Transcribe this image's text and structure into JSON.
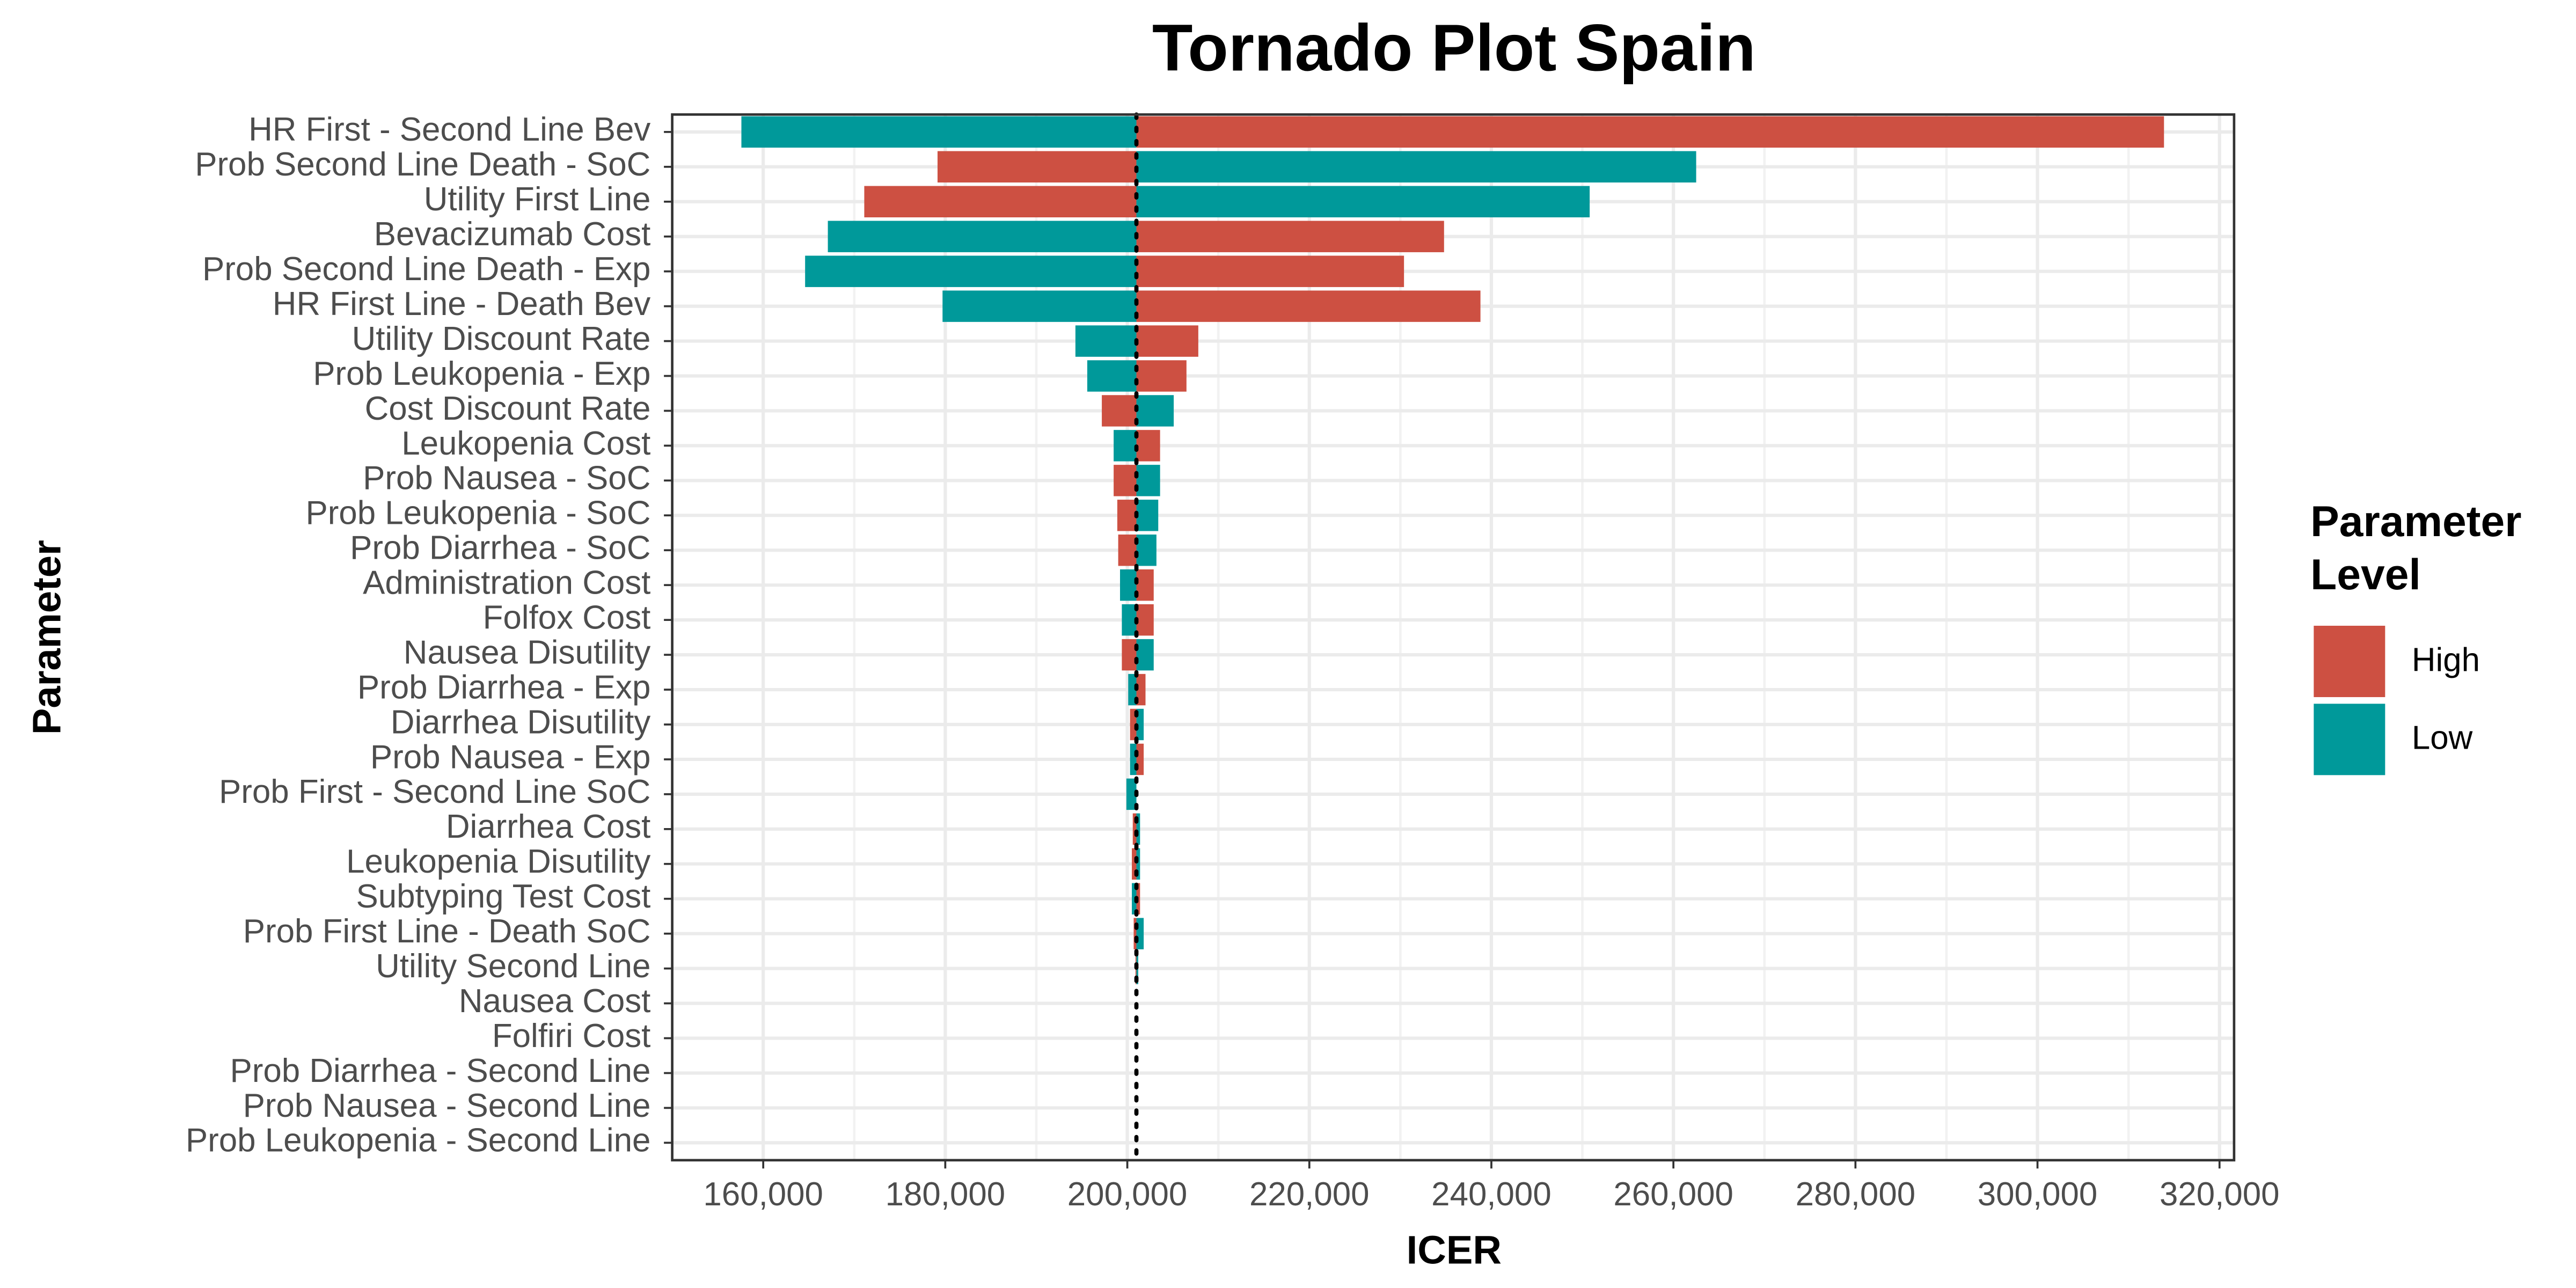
{
  "chart_data": {
    "type": "tornado",
    "title": "Tornado Plot Spain",
    "x_label": "ICER",
    "y_label": "Parameter",
    "legend_title": "Parameter Level",
    "categories": [
      "HR First - Second Line Bev",
      "Prob Second Line Death - SoC",
      "Utility First Line",
      "Bevacizumab Cost",
      "Prob Second Line Death - Exp",
      "HR First Line - Death Bev",
      "Utility Discount Rate",
      "Prob Leukopenia - Exp",
      "Cost Discount Rate",
      "Leukopenia Cost",
      "Prob Nausea - SoC",
      "Prob Leukopenia - SoC",
      "Prob Diarrhea - SoC",
      "Administration Cost",
      "Folfox Cost",
      "Nausea Disutility",
      "Prob Diarrhea - Exp",
      "Diarrhea Disutility",
      "Prob Nausea - Exp",
      "Prob First - Second Line SoC",
      "Diarrhea Cost",
      "Leukopenia Disutility",
      "Subtyping Test Cost",
      "Prob First Line - Death SoC",
      "Utility Second Line",
      "Nausea Cost",
      "Folfiri Cost",
      "Prob Diarrhea - Second Line",
      "Prob Nausea - Second Line",
      "Prob Leukopenia - Second Line"
    ],
    "base": 201000,
    "series": [
      {
        "name": "High",
        "color": "#cd5042",
        "values": [
          313900,
          179150,
          171100,
          234800,
          230400,
          238800,
          207800,
          206500,
          197200,
          203600,
          198500,
          198900,
          199000,
          202900,
          202900,
          199400,
          202000,
          200300,
          201800,
          201000,
          200600,
          200500,
          201400,
          200700,
          200900,
          201000,
          201000,
          201000,
          201000,
          201000
        ]
      },
      {
        "name": "Low",
        "color": "#00999a",
        "values": [
          157600,
          262500,
          250800,
          167100,
          164600,
          179700,
          194300,
          195600,
          205100,
          198500,
          203600,
          203400,
          203200,
          199200,
          199400,
          202900,
          200100,
          201800,
          200300,
          199900,
          201400,
          201400,
          200500,
          201800,
          201200,
          201000,
          201000,
          201000,
          201000,
          201000
        ]
      }
    ],
    "xlim": [
      150000,
      321600
    ],
    "xticks": [
      {
        "value": 160000,
        "label": "160,000"
      },
      {
        "value": 180000,
        "label": "180,000"
      },
      {
        "value": 200000,
        "label": "200,000"
      },
      {
        "value": 220000,
        "label": "220,000"
      },
      {
        "value": 240000,
        "label": "240,000"
      },
      {
        "value": 260000,
        "label": "260,000"
      },
      {
        "value": 280000,
        "label": "280,000"
      },
      {
        "value": 300000,
        "label": "300,000"
      },
      {
        "value": 320000,
        "label": "320,000"
      }
    ],
    "grid": true
  }
}
